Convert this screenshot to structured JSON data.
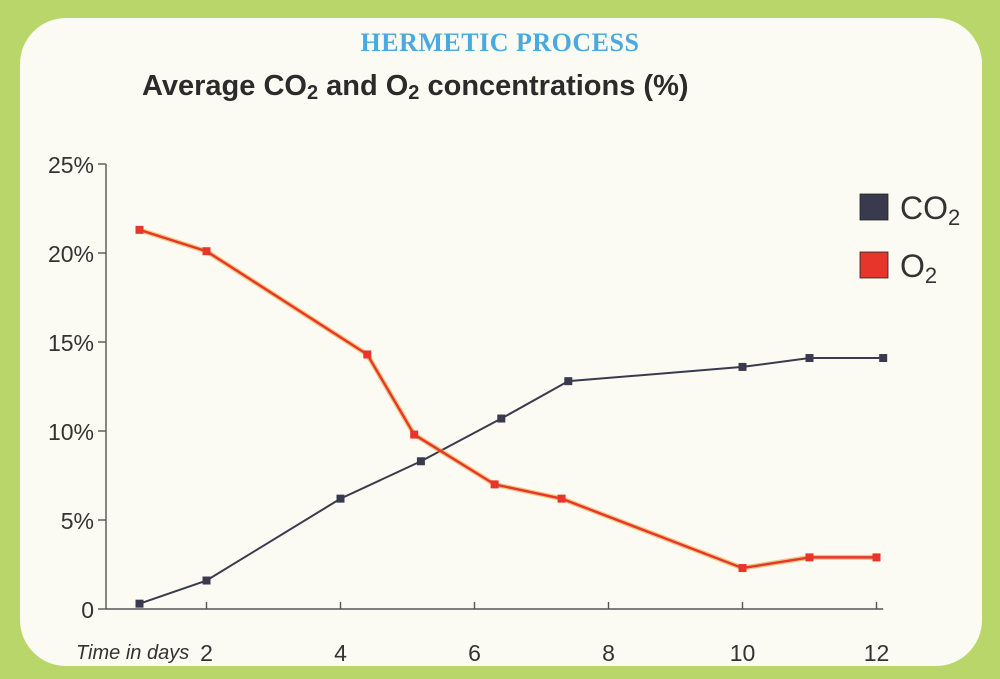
{
  "banner": "HERMETIC PROCESS",
  "chart_title": {
    "before": "Average CO",
    "sub1": "2",
    "middle": " and O",
    "sub2": "2",
    "after": " concentrations (%)"
  },
  "colors": {
    "background": "#b9d66a",
    "panel": "#fcfbf3",
    "banner": "#4aa9df",
    "co2": "#3a3a4e",
    "o2": "#e8352b",
    "o2_shadow": "#e0a020"
  },
  "chart_data": {
    "type": "line",
    "title": "Average CO2 and O2 concentrations (%)",
    "xlabel": "Time in days",
    "ylabel": "",
    "xlim": [
      0,
      12
    ],
    "ylim": [
      0,
      25
    ],
    "x_ticks": [
      2,
      4,
      6,
      8,
      10,
      12
    ],
    "y_ticks": [
      0,
      5,
      10,
      15,
      20,
      25
    ],
    "y_tick_labels": [
      "0",
      "5%",
      "10%",
      "15%",
      "20%",
      "25%"
    ],
    "legend_position": "top-right",
    "grid": false,
    "series": [
      {
        "key": "co2",
        "name": "CO2",
        "name_base": "CO",
        "name_sub": "2",
        "color": "#3a3a4e",
        "points": [
          [
            1.0,
            0.3
          ],
          [
            2.0,
            1.6
          ],
          [
            4.0,
            6.2
          ],
          [
            5.2,
            8.3
          ],
          [
            6.4,
            10.7
          ],
          [
            7.4,
            12.8
          ],
          [
            10.0,
            13.6
          ],
          [
            11.0,
            14.1
          ],
          [
            12.1,
            14.1
          ]
        ]
      },
      {
        "key": "o2",
        "name": "O2",
        "name_base": "O",
        "name_sub": "2",
        "color": "#e8352b",
        "points": [
          [
            1.0,
            21.3
          ],
          [
            2.0,
            20.1
          ],
          [
            4.4,
            14.3
          ],
          [
            5.1,
            9.8
          ],
          [
            6.3,
            7.0
          ],
          [
            7.3,
            6.2
          ],
          [
            10.0,
            2.3
          ],
          [
            11.0,
            2.9
          ],
          [
            12.0,
            2.9
          ]
        ]
      }
    ]
  }
}
